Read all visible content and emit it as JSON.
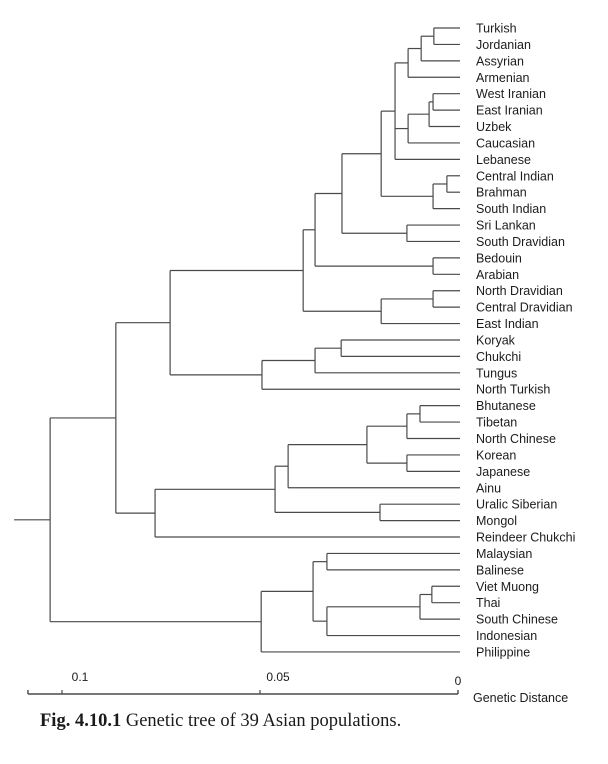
{
  "chart_data": {
    "type": "dendrogram",
    "title": "",
    "xlabel": "Genetic Distance",
    "axis": {
      "range": [
        0.1086,
        0
      ],
      "ticks": [
        {
          "value": 0.1,
          "label": "0.1"
        },
        {
          "value": 0.05,
          "label": "0.05"
        },
        {
          "value": 0,
          "label": "0"
        }
      ]
    },
    "leaves": [
      "Turkish",
      "Jordanian",
      "Assyrian",
      "Armenian",
      "West Iranian",
      "East Iranian",
      "Uzbek",
      "Caucasian",
      "Lebanese",
      "Central Indian",
      "Brahman",
      "South Indian",
      "Sri Lankan",
      "South Dravidian",
      "Bedouin",
      "Arabian",
      "North Dravidian",
      "Central Dravidian",
      "East Indian",
      "Koryak",
      "Chukchi",
      "Tungus",
      "North Turkish",
      "Bhutanese",
      "Tibetan",
      "North Chinese",
      "Korean",
      "Japanese",
      "Ainu",
      "Uralic Siberian",
      "Mongol",
      "Reindeer Chukchi",
      "Malaysian",
      "Balinese",
      "Viet Muong",
      "Thai",
      "South Chinese",
      "Indonesian",
      "Philippine"
    ],
    "root_stem_height": 0.1121,
    "tree": {
      "h": 0.103,
      "c": [
        {
          "h": 0.0864,
          "c": [
            {
              "h": 0.0727,
              "c": [
                {
                  "h": 0.0391,
                  "c": [
                    {
                      "h": 0.0361,
                      "c": [
                        {
                          "h": 0.0293,
                          "c": [
                            {
                              "h": 0.0194,
                              "c": [
                                {
                                  "h": 0.0159,
                                  "c": [
                                    {
                                      "h": 0.0126,
                                      "c": [
                                        {
                                          "h": 0.0093,
                                          "c": [
                                            {
                                              "h": 0.0061,
                                              "c": [
                                                {
                                                  "l": 0
                                                },
                                                {
                                                  "l": 1
                                                }
                                              ]
                                            },
                                            {
                                              "l": 2
                                            }
                                          ]
                                        },
                                        {
                                          "l": 3
                                        }
                                      ]
                                    },
                                    {
                                      "h": 0.0126,
                                      "c": [
                                        {
                                          "h": 0.0073,
                                          "c": [
                                            {
                                              "h": 0.0063,
                                              "c": [
                                                {
                                                  "l": 4
                                                },
                                                {
                                                  "l": 5
                                                }
                                              ]
                                            },
                                            {
                                              "l": 6
                                            }
                                          ]
                                        },
                                        {
                                          "l": 7
                                        }
                                      ]
                                    },
                                    {
                                      "l": 8
                                    }
                                  ]
                                },
                                {
                                  "h": 0.0063,
                                  "c": [
                                    {
                                      "h": 0.0028,
                                      "c": [
                                        {
                                          "l": 9
                                        },
                                        {
                                          "l": 10
                                        }
                                      ]
                                    },
                                    {
                                      "l": 11
                                    }
                                  ]
                                }
                              ]
                            },
                            {
                              "h": 0.0129,
                              "c": [
                                {
                                  "l": 12
                                },
                                {
                                  "l": 13
                                }
                              ]
                            }
                          ]
                        },
                        {
                          "h": 0.0063,
                          "c": [
                            {
                              "l": 14
                            },
                            {
                              "l": 15
                            }
                          ]
                        }
                      ]
                    },
                    {
                      "h": 0.0194,
                      "c": [
                        {
                          "h": 0.0063,
                          "c": [
                            {
                              "l": 16
                            },
                            {
                              "l": 17
                            }
                          ]
                        },
                        {
                          "l": 18
                        }
                      ]
                    }
                  ]
                },
                {
                  "h": 0.0495,
                  "c": [
                    {
                      "h": 0.0361,
                      "c": [
                        {
                          "h": 0.0295,
                          "c": [
                            {
                              "l": 19
                            },
                            {
                              "l": 20
                            }
                          ]
                        },
                        {
                          "l": 21
                        }
                      ]
                    },
                    {
                      "l": 22
                    }
                  ]
                }
              ]
            },
            {
              "h": 0.0765,
              "c": [
                {
                  "h": 0.0462,
                  "c": [
                    {
                      "h": 0.0429,
                      "c": [
                        {
                          "h": 0.023,
                          "c": [
                            {
                              "h": 0.0129,
                              "c": [
                                {
                                  "h": 0.0096,
                                  "c": [
                                    {
                                      "l": 23
                                    },
                                    {
                                      "l": 24
                                    }
                                  ]
                                },
                                {
                                  "l": 25
                                }
                              ]
                            },
                            {
                              "h": 0.0129,
                              "c": [
                                {
                                  "l": 26
                                },
                                {
                                  "l": 27
                                }
                              ]
                            }
                          ]
                        },
                        {
                          "l": 28
                        }
                      ]
                    },
                    {
                      "h": 0.0197,
                      "c": [
                        {
                          "l": 29
                        },
                        {
                          "l": 30
                        }
                      ]
                    }
                  ]
                },
                {
                  "l": 31
                }
              ]
            }
          ]
        },
        {
          "h": 0.0497,
          "c": [
            {
              "h": 0.0366,
              "c": [
                {
                  "h": 0.0331,
                  "c": [
                    {
                      "l": 32
                    },
                    {
                      "l": 33
                    }
                  ]
                },
                {
                  "h": 0.0331,
                  "c": [
                    {
                      "h": 0.0096,
                      "c": [
                        {
                          "h": 0.0066,
                          "c": [
                            {
                              "l": 34
                            },
                            {
                              "l": 35
                            }
                          ]
                        },
                        {
                          "l": 36
                        }
                      ]
                    },
                    {
                      "l": 37
                    }
                  ]
                }
              ]
            },
            {
              "l": 38
            }
          ]
        }
      ]
    }
  },
  "caption": {
    "label": "Fig. 4.10.1",
    "text": " Genetic tree of 39 Asian populations."
  },
  "colors": {
    "line": "#4a4a4a",
    "text": "#1c1c1c"
  }
}
